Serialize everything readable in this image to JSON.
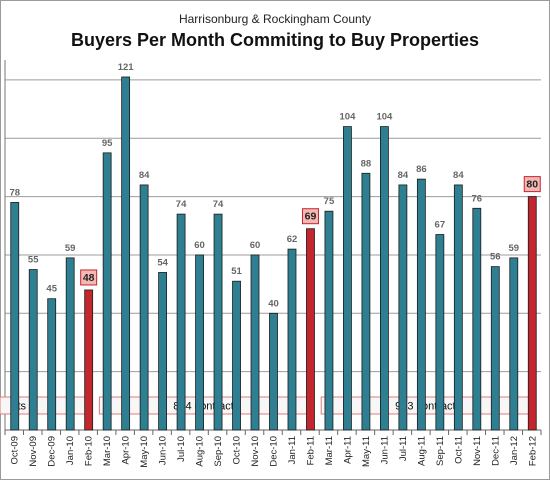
{
  "subtitle": "Harrisonburg & Rockingham County",
  "title": "Buyers Per Month Commiting to Buy Properties",
  "colors": {
    "normal": "#2E7F92",
    "highlight": "#C1272D",
    "highlight_label_bg": "#F4B7B4"
  },
  "chart_data": {
    "type": "bar",
    "title": "Buyers Per Month Commiting to Buy Properties",
    "subtitle": "Harrisonburg & Rockingham County",
    "categories": [
      "Oct-09",
      "Nov-09",
      "Dec-09",
      "Jan-10",
      "Feb-10",
      "Mar-10",
      "Apr-10",
      "May-10",
      "Jun-10",
      "Jul-10",
      "Aug-10",
      "Sep-10",
      "Oct-10",
      "Nov-10",
      "Dec-10",
      "Jan-11",
      "Feb-11",
      "Mar-11",
      "Apr-11",
      "May-11",
      "Jun-11",
      "Jul-11",
      "Aug-11",
      "Sep-11",
      "Oct-11",
      "Nov-11",
      "Dec-11",
      "Jan-12",
      "Feb-12"
    ],
    "values": [
      78,
      55,
      45,
      59,
      48,
      95,
      121,
      84,
      54,
      74,
      60,
      74,
      51,
      60,
      40,
      62,
      69,
      75,
      104,
      88,
      104,
      84,
      86,
      67,
      84,
      76,
      56,
      59,
      80
    ],
    "highlighted_categories": [
      "Feb-10",
      "Feb-11",
      "Feb-12"
    ],
    "ylim": [
      0,
      140
    ],
    "grid": true,
    "annotations": [
      {
        "text": "cts",
        "from": "Oct-09",
        "to": "Feb-10"
      },
      {
        "text": "844 contracts",
        "from": "Mar-10",
        "to": "Feb-11"
      },
      {
        "text": "963 contracts",
        "from": "Mar-11",
        "to": "Feb-12"
      }
    ]
  }
}
